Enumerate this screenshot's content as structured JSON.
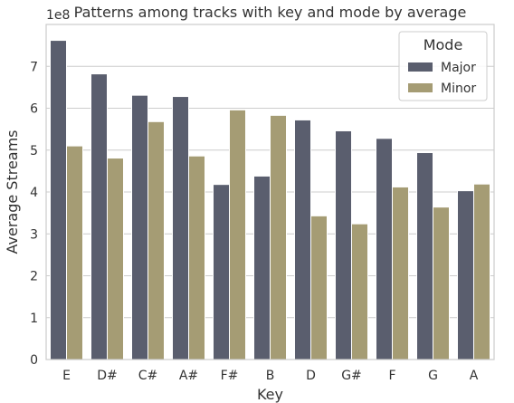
{
  "chart_data": {
    "type": "bar",
    "title": "Patterns among tracks with key and mode by average",
    "xlabel": "Key",
    "ylabel": "Average Streams",
    "y_exponent_label": "1e8",
    "ylim": [
      0,
      8
    ],
    "yticks": [
      0,
      1,
      2,
      3,
      4,
      5,
      6,
      7
    ],
    "grid": true,
    "legend": {
      "title": "Mode",
      "position": "top-right"
    },
    "categories": [
      "E",
      "D#",
      "C#",
      "A#",
      "F#",
      "B",
      "D",
      "G#",
      "F",
      "G",
      "A"
    ],
    "series": [
      {
        "name": "Major",
        "color": "#5a5e6e",
        "values": [
          7.62,
          6.82,
          6.31,
          6.28,
          4.18,
          4.38,
          5.72,
          5.46,
          5.28,
          4.94,
          4.03
        ]
      },
      {
        "name": "Minor",
        "color": "#a59c74",
        "values": [
          5.1,
          4.81,
          5.68,
          4.86,
          5.96,
          5.83,
          3.43,
          3.24,
          4.12,
          3.64,
          4.19
        ]
      }
    ]
  }
}
